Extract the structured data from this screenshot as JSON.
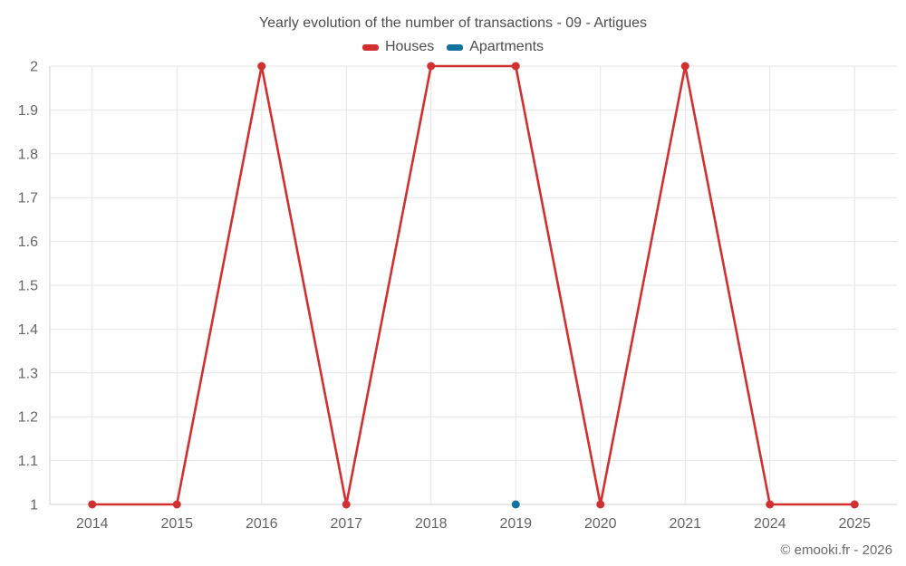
{
  "page": {
    "watermark": "© emooki.fr - 2026"
  },
  "chart_data": {
    "type": "line",
    "title": "Yearly evolution of the number of transactions - 09 - Artigues",
    "xlabel": "",
    "ylabel": "",
    "categories": [
      "2014",
      "2015",
      "2016",
      "2017",
      "2018",
      "2019",
      "2020",
      "2021",
      "2024",
      "2025"
    ],
    "series": [
      {
        "name": "Houses",
        "color": "#d23030",
        "values": [
          1,
          1,
          2,
          1,
          2,
          2,
          1,
          2,
          1,
          1
        ]
      },
      {
        "name": "Apartments",
        "color": "#11719f",
        "values": [
          null,
          null,
          null,
          null,
          null,
          1,
          null,
          null,
          null,
          null
        ]
      }
    ],
    "ylim": [
      1,
      2
    ],
    "yticks": [
      1,
      1.1,
      1.2,
      1.3,
      1.4,
      1.5,
      1.6,
      1.7,
      1.8,
      1.9,
      2
    ],
    "grid": true,
    "legend_position": "top",
    "colors": {
      "grid": "#e6e6e6",
      "axis": "#d2d2d2",
      "tick_text": "#666666",
      "title_text": "#4d4d4d"
    }
  }
}
